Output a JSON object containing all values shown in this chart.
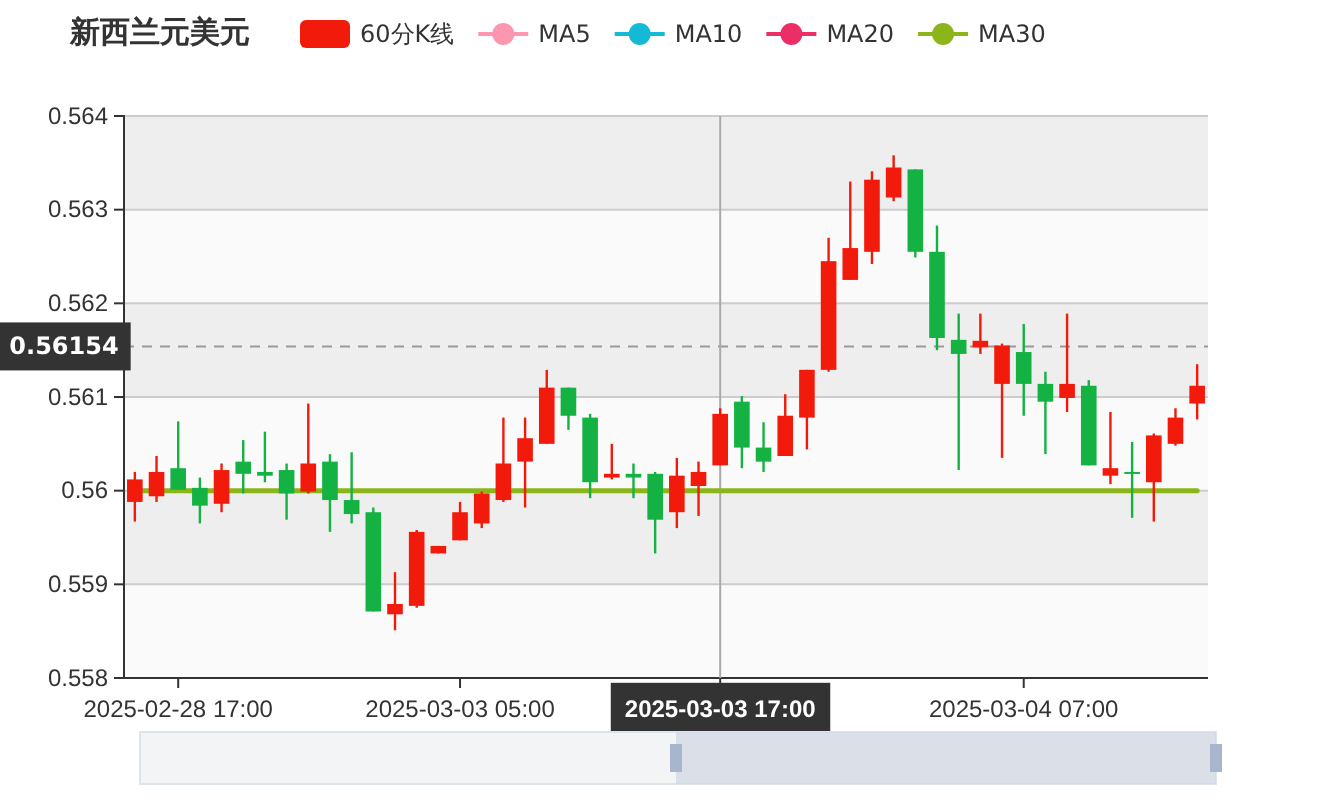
{
  "chart_data": {
    "type": "candlestick",
    "title": "新西兰元美元",
    "categories": [
      null,
      null,
      "2025-02-28 17:00",
      null,
      null,
      null,
      null,
      null,
      null,
      null,
      null,
      null,
      null,
      null,
      null,
      "2025-03-03 05:00",
      null,
      null,
      null,
      null,
      null,
      null,
      null,
      null,
      null,
      null,
      null,
      "2025-03-03 17:00",
      null,
      null,
      null,
      null,
      null,
      null,
      null,
      null,
      null,
      null,
      null,
      null,
      null,
      "2025-03-04 07:00",
      null,
      null,
      null,
      null,
      null,
      null,
      null,
      null
    ],
    "series": [
      {
        "name": "60分K线",
        "color": "#f21a0a",
        "colors": [
          "#f21a0a",
          "#f21a0a",
          "#14b143",
          "#14b143",
          "#f21a0a",
          "#14b143",
          "#14b143",
          "#14b143",
          "#f21a0a",
          "#14b143",
          "#14b143",
          "#14b143",
          "#f21a0a",
          "#f21a0a",
          "#f21a0a",
          "#f21a0a",
          "#f21a0a",
          "#f21a0a",
          "#f21a0a",
          "#f21a0a",
          "#14b143",
          "#14b143",
          "#f21a0a",
          "#14b143",
          "#14b143",
          "#f21a0a",
          "#f21a0a",
          "#f21a0a",
          "#14b143",
          "#14b143",
          "#f21a0a",
          "#f21a0a",
          "#f21a0a",
          "#f21a0a",
          "#f21a0a",
          "#f21a0a",
          "#14b143",
          "#14b143",
          "#14b143",
          "#f21a0a",
          "#f21a0a",
          "#14b143",
          "#14b143",
          "#f21a0a",
          "#14b143",
          "#f21a0a",
          "#14b143",
          "#f21a0a",
          "#f21a0a",
          "#f21a0a"
        ],
        "ohlc": [
          [
            0.55988,
            0.5602,
            0.55967,
            0.56012
          ],
          [
            0.55994,
            0.56037,
            0.55988,
            0.5602
          ],
          [
            0.56024,
            0.56074,
            0.56001,
            0.56001
          ],
          [
            0.56003,
            0.56014,
            0.55965,
            0.55984
          ],
          [
            0.55986,
            0.56029,
            0.55977,
            0.56022
          ],
          [
            0.56031,
            0.56054,
            0.55997,
            0.56018
          ],
          [
            0.5602,
            0.56063,
            0.56009,
            0.56016
          ],
          [
            0.56022,
            0.56029,
            0.55969,
            0.55997
          ],
          [
            0.55999,
            0.56093,
            0.55997,
            0.56029
          ],
          [
            0.56031,
            0.56039,
            0.55956,
            0.5599
          ],
          [
            0.5599,
            0.56041,
            0.55965,
            0.55975
          ],
          [
            0.55977,
            0.55982,
            0.55871,
            0.55871
          ],
          [
            0.55868,
            0.55913,
            0.55851,
            0.55879
          ],
          [
            0.55877,
            0.55958,
            0.55875,
            0.55956
          ],
          [
            0.55933,
            0.55941,
            0.55933,
            0.55941
          ],
          [
            0.55947,
            0.55988,
            0.55947,
            0.55977
          ],
          [
            0.55965,
            0.55999,
            0.5596,
            0.55997
          ],
          [
            0.5599,
            0.56078,
            0.55988,
            0.56029
          ],
          [
            0.56031,
            0.56078,
            0.55982,
            0.56056
          ],
          [
            0.5605,
            0.56129,
            0.5605,
            0.5611
          ],
          [
            0.5611,
            0.5611,
            0.56065,
            0.5608
          ],
          [
            0.56078,
            0.56082,
            0.55992,
            0.56009
          ],
          [
            0.56014,
            0.5605,
            0.56012,
            0.56018
          ],
          [
            0.56018,
            0.56029,
            0.55992,
            0.56014
          ],
          [
            0.56018,
            0.5602,
            0.55933,
            0.55969
          ],
          [
            0.55977,
            0.56035,
            0.5596,
            0.56016
          ],
          [
            0.56005,
            0.56031,
            0.55973,
            0.5602
          ],
          [
            0.56027,
            0.56088,
            0.56027,
            0.56082
          ],
          [
            0.56095,
            0.56101,
            0.56024,
            0.56046
          ],
          [
            0.56046,
            0.56073,
            0.5602,
            0.56031
          ],
          [
            0.56037,
            0.56103,
            0.56037,
            0.5608
          ],
          [
            0.56078,
            0.56129,
            0.56044,
            0.56129
          ],
          [
            0.56129,
            0.5627,
            0.56127,
            0.56245
          ],
          [
            0.56225,
            0.5633,
            0.56225,
            0.56259
          ],
          [
            0.56255,
            0.56341,
            0.56242,
            0.56332
          ],
          [
            0.56313,
            0.56358,
            0.56309,
            0.56345
          ],
          [
            0.56343,
            0.56343,
            0.56249,
            0.56255
          ],
          [
            0.56255,
            0.56283,
            0.5615,
            0.56163
          ],
          [
            0.56161,
            0.56189,
            0.56022,
            0.56146
          ],
          [
            0.56153,
            0.56189,
            0.56146,
            0.5616
          ],
          [
            0.56114,
            0.56157,
            0.56035,
            0.56155
          ],
          [
            0.56148,
            0.56178,
            0.5608,
            0.56114
          ],
          [
            0.56114,
            0.56127,
            0.56039,
            0.56095
          ],
          [
            0.56099,
            0.56189,
            0.56084,
            0.56114
          ],
          [
            0.56112,
            0.56118,
            0.56027,
            0.56027
          ],
          [
            0.56016,
            0.56084,
            0.56007,
            0.56024
          ],
          [
            0.5602,
            0.56052,
            0.55971,
            0.56018
          ],
          [
            0.56009,
            0.56061,
            0.55967,
            0.56059
          ],
          [
            0.5605,
            0.56088,
            0.56048,
            0.56078
          ],
          [
            0.56093,
            0.56135,
            0.56076,
            0.56112
          ]
        ]
      },
      {
        "name": "MA5",
        "type": "line",
        "color": "#fc97af",
        "values": [
          null,
          null,
          null,
          null,
          null,
          null,
          null,
          null,
          null,
          null,
          null,
          null,
          null,
          null,
          null,
          null,
          null,
          null,
          null,
          null,
          null,
          null,
          null,
          null,
          null,
          null,
          null,
          null,
          null,
          null,
          null,
          null,
          null,
          null,
          null,
          null,
          null,
          null,
          null,
          null,
          null,
          null,
          null,
          null,
          null,
          null,
          null,
          null,
          null,
          null
        ]
      },
      {
        "name": "MA10",
        "type": "line",
        "color": "#14b9d6",
        "values": [
          null,
          null,
          null,
          null,
          null,
          null,
          null,
          null,
          null,
          null,
          null,
          null,
          null,
          null,
          null,
          null,
          null,
          null,
          null,
          null,
          null,
          null,
          null,
          null,
          null,
          null,
          null,
          null,
          null,
          null,
          null,
          null,
          null,
          null,
          null,
          null,
          null,
          null,
          null,
          null,
          null,
          null,
          null,
          null,
          null,
          null,
          null,
          null,
          null,
          null
        ]
      },
      {
        "name": "MA20",
        "type": "line",
        "color": "#eb2f66",
        "values": [
          null,
          null,
          null,
          null,
          null,
          null,
          null,
          null,
          null,
          null,
          null,
          null,
          null,
          null,
          null,
          null,
          null,
          null,
          null,
          null,
          null,
          null,
          null,
          null,
          null,
          null,
          null,
          null,
          null,
          null,
          null,
          null,
          null,
          null,
          null,
          null,
          null,
          null,
          null,
          null,
          null,
          null,
          null,
          null,
          null,
          null,
          null,
          null,
          null,
          null
        ]
      },
      {
        "name": "MA30",
        "type": "line",
        "color": "#8cb51a",
        "values": [
          0.56,
          0.56,
          0.56,
          0.56,
          0.56,
          0.56,
          0.56,
          0.56,
          0.56,
          0.56,
          0.56,
          0.56,
          0.56,
          0.56,
          0.56,
          0.56,
          0.56,
          0.56,
          0.56,
          0.56,
          0.56,
          0.56,
          0.56,
          0.56,
          0.56,
          0.56,
          0.56,
          0.56,
          0.56,
          0.56,
          0.56,
          0.56,
          0.56,
          0.56,
          0.56,
          0.56,
          0.56,
          0.56,
          0.56,
          0.56,
          0.56,
          0.56,
          0.56,
          0.56,
          0.56,
          0.56,
          0.56,
          0.56,
          0.56,
          0.56
        ]
      }
    ],
    "ylim": [
      0.558,
      0.564
    ],
    "yticks": [
      0.558,
      0.559,
      0.56,
      0.561,
      0.562,
      0.563,
      0.564
    ],
    "grid": "y",
    "legend": "top",
    "marker": "none",
    "ref_lines": [
      {
        "axis": "y",
        "value": 0.56154,
        "label": "0.56154",
        "line_style": "dashed",
        "color": "#999999"
      },
      {
        "axis": "x",
        "value": "2025-03-03 17:00",
        "line_style": "solid",
        "color": "#aaaaaa"
      }
    ]
  }
}
